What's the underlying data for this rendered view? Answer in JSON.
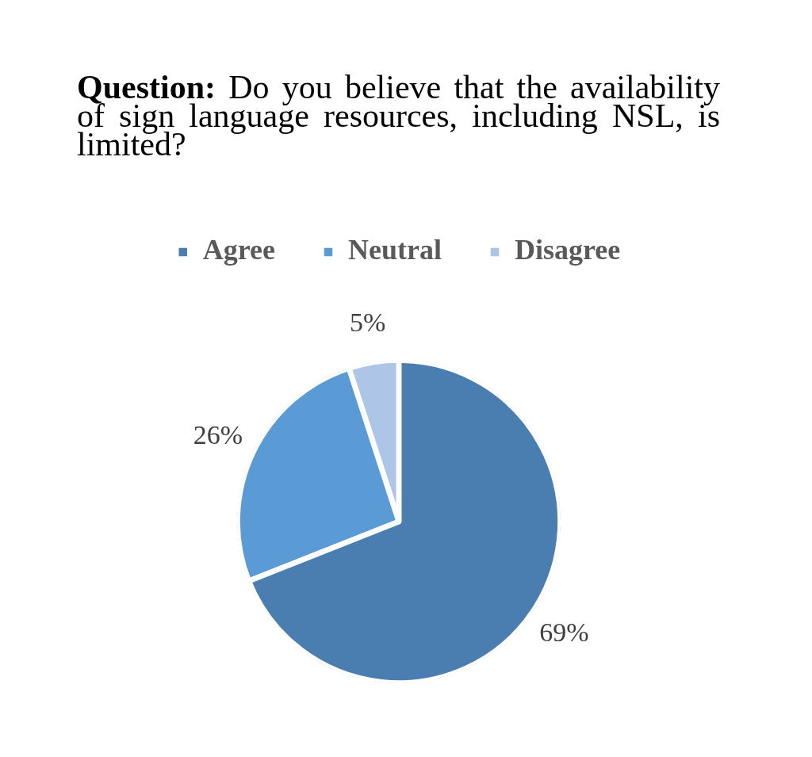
{
  "chart_data": {
    "type": "pie",
    "title": "Question: Do you believe that the availability of sign language resources, including NSL, is limited?",
    "categories": [
      "Agree",
      "Neutral",
      "Disagree"
    ],
    "values": [
      69,
      26,
      5
    ],
    "colors": [
      "#4a7eb0",
      "#5b9bd5",
      "#adc5e7"
    ],
    "value_labels": [
      "69%",
      "26%",
      "5%"
    ],
    "legend": "top"
  }
}
